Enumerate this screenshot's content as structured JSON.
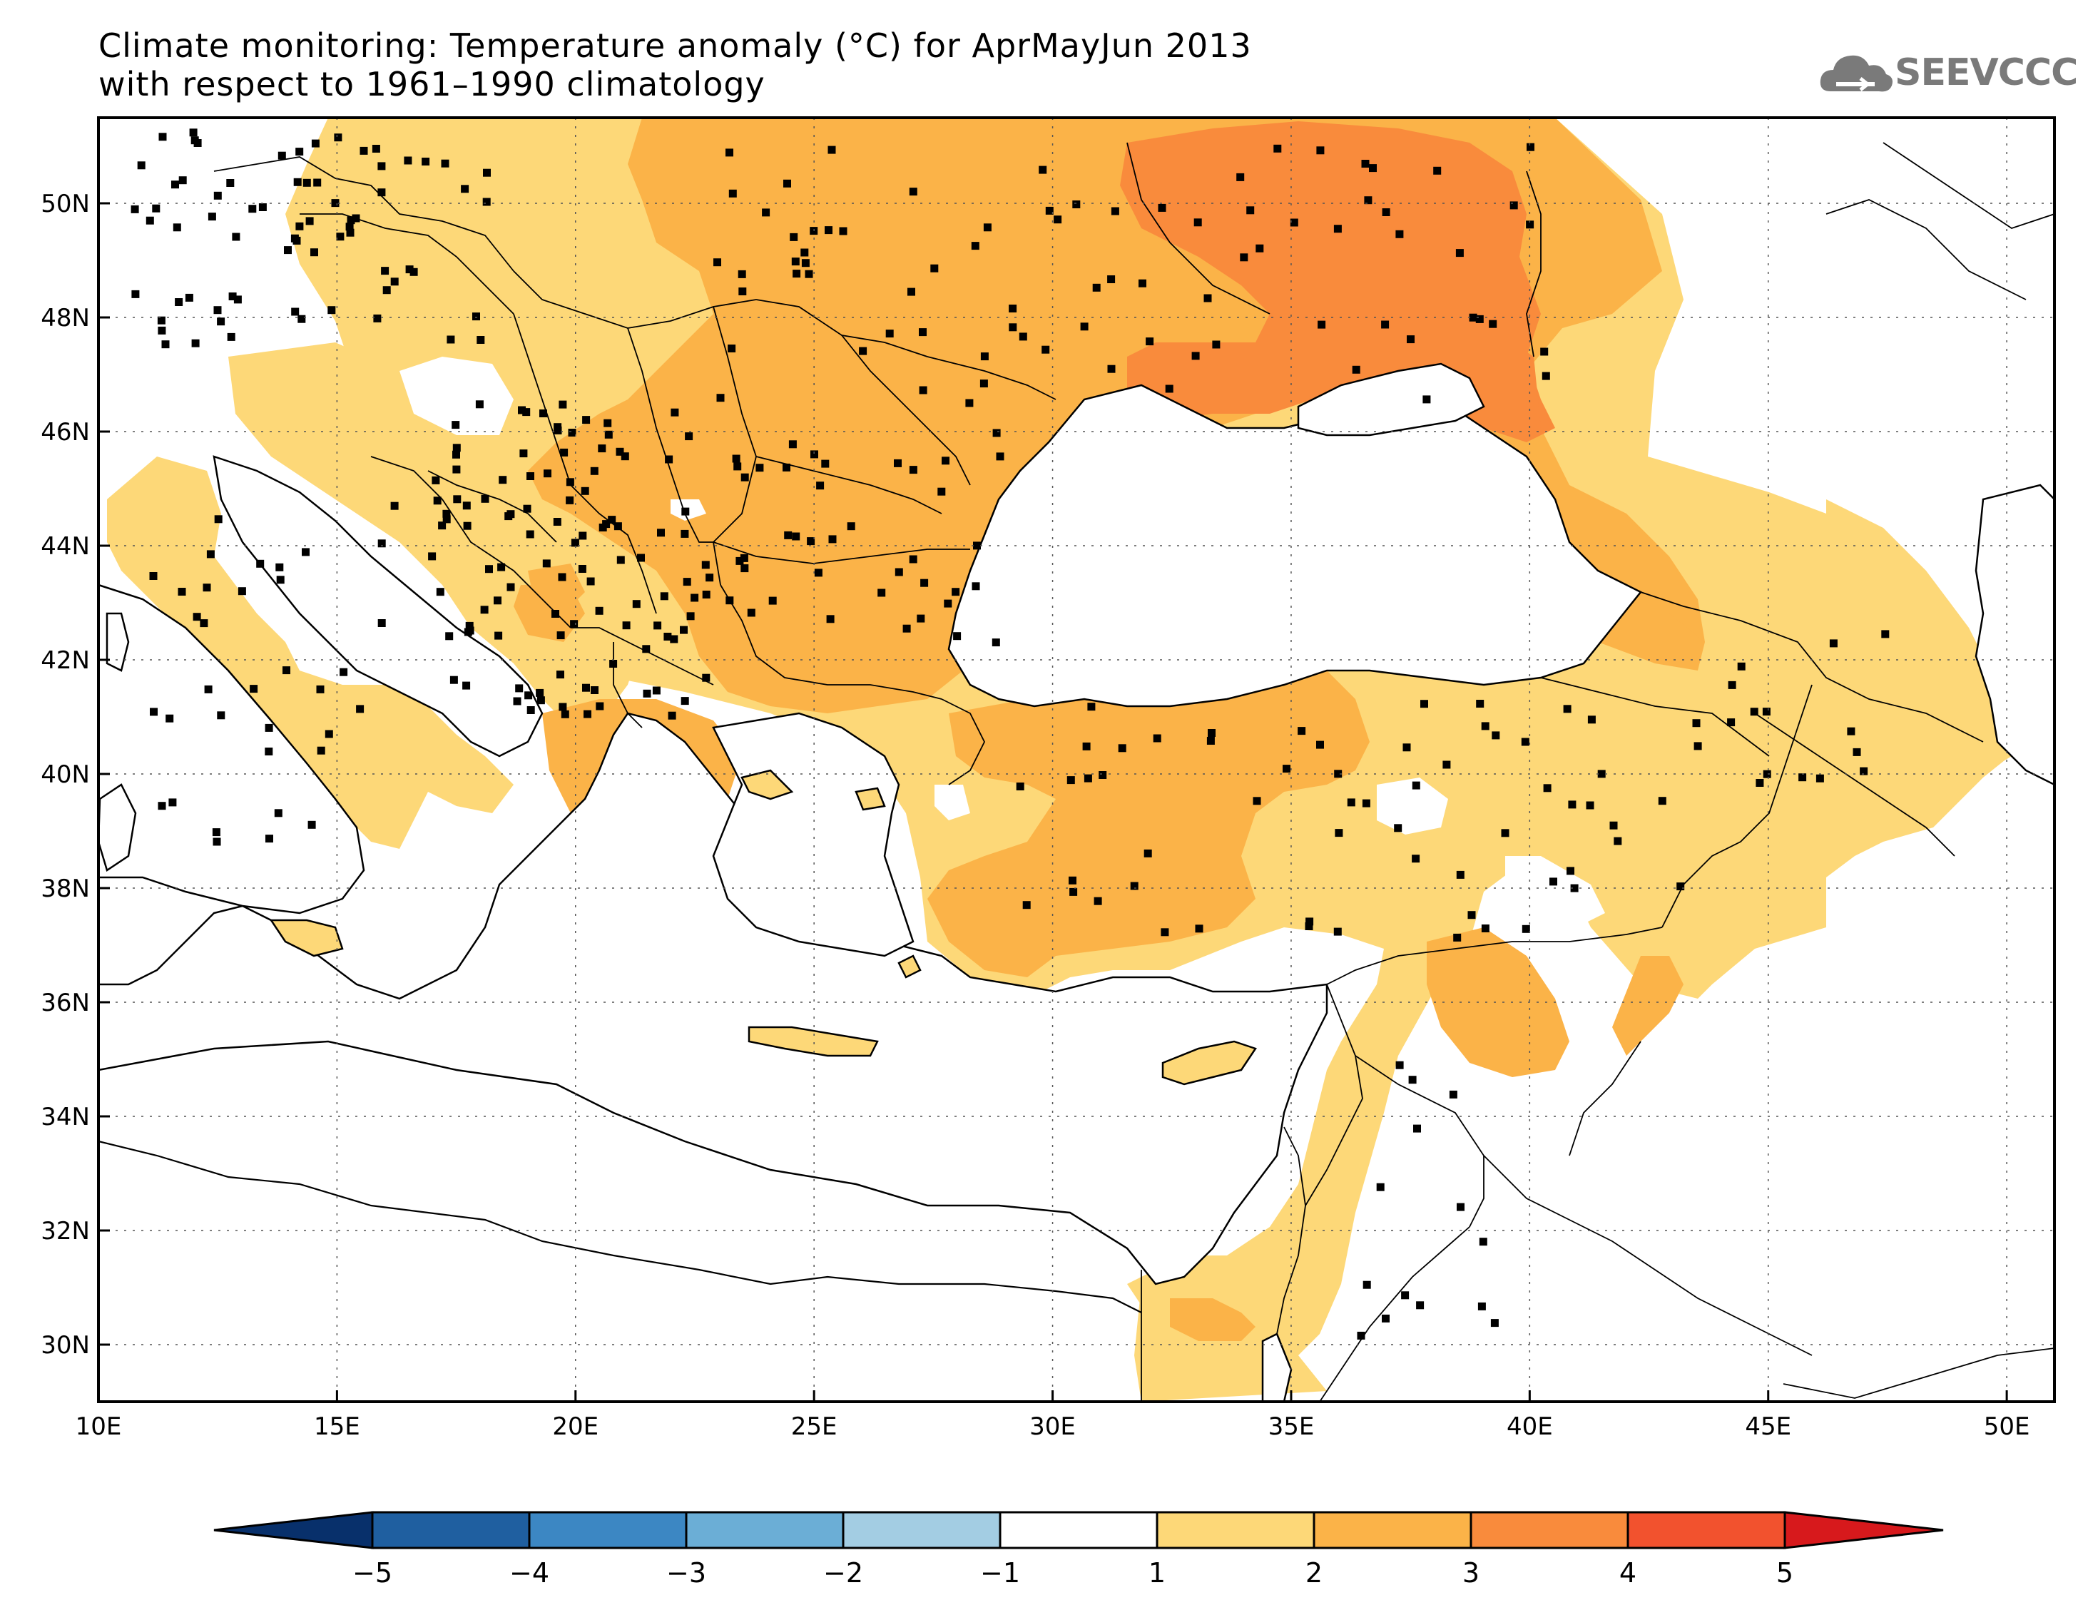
{
  "title": {
    "line1": "Climate monitoring: Temperature anomaly (°C) for AprMayJun 2013",
    "line2": "with respect to 1961–1990 climatology"
  },
  "logo": {
    "text": "SEEVCCC",
    "icon": "cloud-icon"
  },
  "map": {
    "lon_range": [
      10,
      51
    ],
    "lat_range": [
      29,
      51.5
    ],
    "lon_ticks": [
      "10E",
      "15E",
      "20E",
      "25E",
      "30E",
      "35E",
      "40E",
      "45E",
      "50E"
    ],
    "lat_ticks": [
      "30N",
      "32N",
      "34N",
      "36N",
      "38N",
      "40N",
      "42N",
      "44N",
      "46N",
      "48N",
      "50N"
    ],
    "gridlines": true
  },
  "colorbar": {
    "labels": [
      "−5",
      "−4",
      "−3",
      "−2",
      "−1",
      "1",
      "2",
      "3",
      "4",
      "5"
    ],
    "colors": [
      "#08306b",
      "#1f5fa0",
      "#3c87c3",
      "#6baed6",
      "#a3cde3",
      "#ffffff",
      "#fdd878",
      "#fbb348",
      "#f98b3c",
      "#f2522e",
      "#d7191c"
    ],
    "extend": "both"
  },
  "palette": {
    "a12": "#fdd878",
    "a23": "#fbb348",
    "a34": "#f98b3c",
    "coast": "#000000"
  }
}
